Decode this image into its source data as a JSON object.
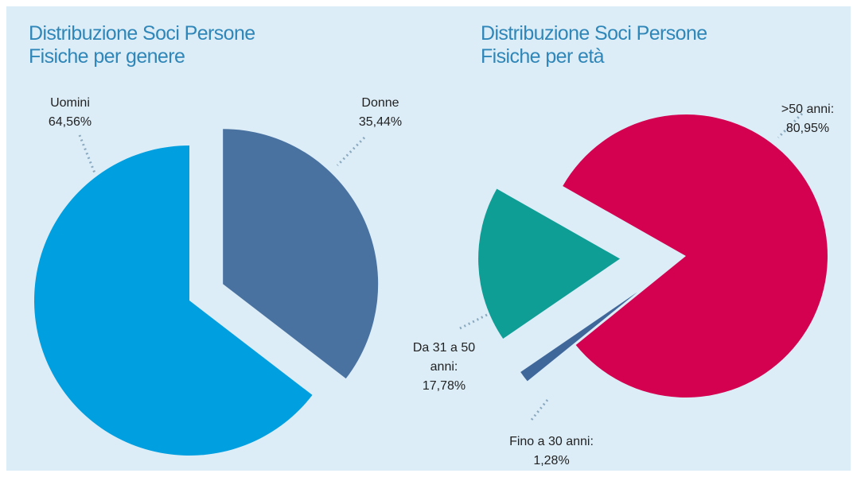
{
  "chart_data": [
    {
      "type": "pie",
      "title": "Distribuzione Soci Persone Fisiche per genere",
      "categories": [
        "Uomini",
        "Donne"
      ],
      "values": [
        64.56,
        35.44
      ],
      "value_labels": [
        "64,56%",
        "35,44%"
      ],
      "colors": [
        "#009fe0",
        "#4a72a1"
      ]
    },
    {
      "type": "pie",
      "title": "Distribuzione Soci Persone Fisiche per età",
      "categories": [
        ">50 anni:",
        "Da 31 a 50 anni:",
        "Fino a 30 anni:"
      ],
      "values": [
        80.95,
        17.78,
        1.28
      ],
      "value_labels": [
        "80,95%",
        "17,78%",
        "1,28%"
      ],
      "colors": [
        "#d40050",
        "#0f9e95",
        "#40679a"
      ]
    }
  ]
}
